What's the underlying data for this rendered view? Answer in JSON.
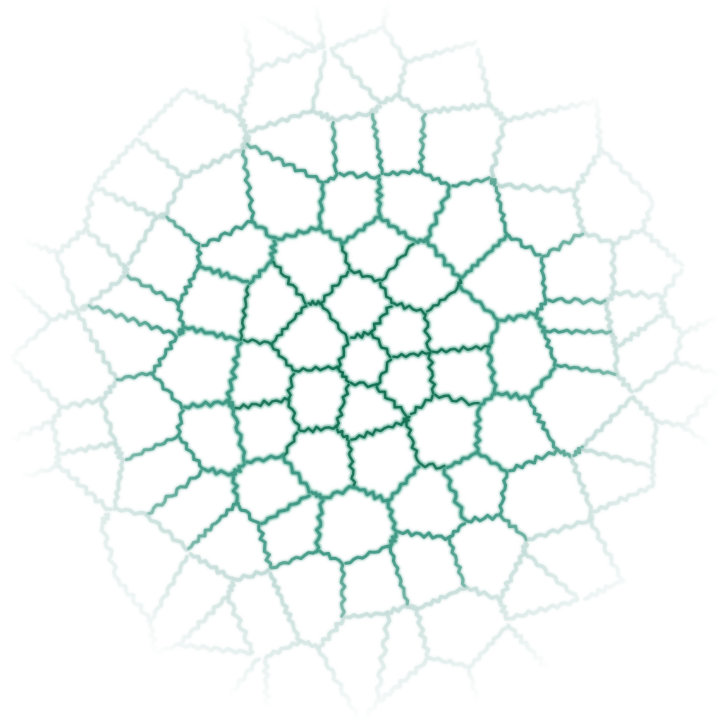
{
  "image": {
    "subject": "voronoi-crack-pattern",
    "background_color": "#ffffff",
    "line_color_center": "#0a6b4e",
    "line_color_mid": "#2f8f7a",
    "line_color_edge": "#9fc7c0",
    "glow_color": "#3fae8c",
    "style": "wavy-jagged-edges",
    "fade": "radial-to-edges"
  }
}
